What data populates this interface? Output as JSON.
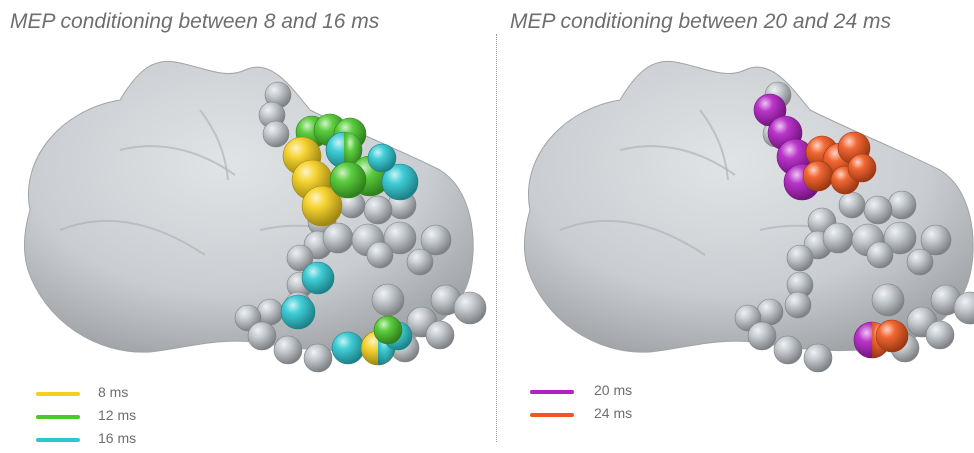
{
  "panels": [
    {
      "title": "MEP conditioning between 8 and 16 ms",
      "legend": [
        {
          "label": "8 ms",
          "color": "#f5cf1b"
        },
        {
          "label": "12 ms",
          "color": "#4ac72a"
        },
        {
          "label": "16 ms",
          "color": "#2cc8d2"
        }
      ]
    },
    {
      "title": "MEP conditioning between 20 and 24 ms",
      "legend": [
        {
          "label": "20 ms",
          "color": "#b21fc4"
        },
        {
          "label": "24 ms",
          "color": "#f0561d"
        }
      ]
    }
  ],
  "colors": {
    "brain": "#c9cdd1",
    "inactive_sphere": "#c3c8cd",
    "background": "#ffffff",
    "title_text": "#6e6e6e",
    "divider": "#9a9a9a"
  }
}
